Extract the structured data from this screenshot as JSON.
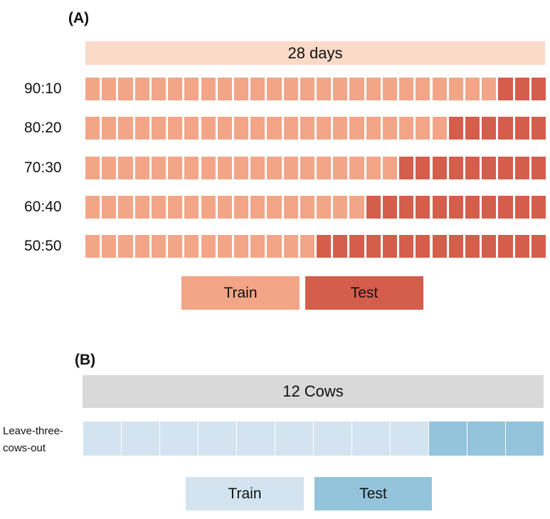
{
  "panel_a": {
    "label": "(A)",
    "banner": "28 days",
    "total_days": 28,
    "rows": [
      {
        "label": "90:10",
        "train_days": 25
      },
      {
        "label": "80:20",
        "train_days": 22
      },
      {
        "label": "70:30",
        "train_days": 19
      },
      {
        "label": "60:40",
        "train_days": 17
      },
      {
        "label": "50:50",
        "train_days": 14
      }
    ],
    "legend": {
      "train": "Train",
      "test": "Test"
    },
    "colors": {
      "banner": "#fbdac8",
      "train": "#f2a587",
      "test": "#d45d4c"
    }
  },
  "panel_b": {
    "label": "(B)",
    "banner": "12 Cows",
    "scheme": "Leave-three-cows-out",
    "scheme_lines": [
      "Leave-three-",
      "cows-out"
    ],
    "total_cows": 12,
    "train_cows": 9,
    "legend": {
      "train": "Train",
      "test": "Test"
    },
    "colors": {
      "banner": "#d9d9d9",
      "train": "#d3e4f0",
      "test": "#93c4dc"
    }
  }
}
